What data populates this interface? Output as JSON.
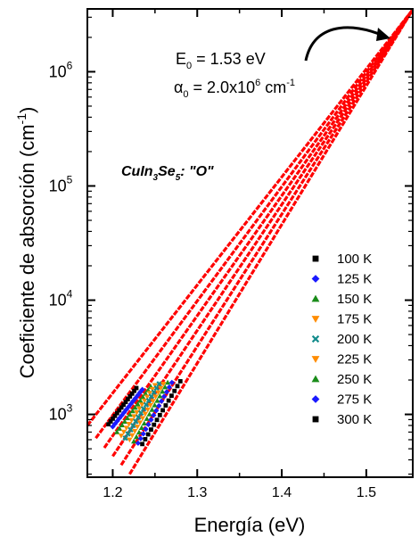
{
  "chart_data": {
    "type": "line",
    "xlabel": "Energía  (eV)",
    "ylabel_main": "Coeficiente de absorción  (cm",
    "ylabel_sup": "-1",
    "ylabel_close": ")",
    "xlim": [
      1.17,
      1.555
    ],
    "ylim_log10": [
      2.45,
      6.55
    ],
    "y_scale": "log",
    "x_ticks": [
      1.2,
      1.3,
      1.4,
      1.5
    ],
    "x_tick_labels": [
      "1.2",
      "1.3",
      "1.4",
      "1.5"
    ],
    "y_ticks": [
      {
        "value": 1000,
        "base": "10",
        "exp": "3"
      },
      {
        "value": 10000,
        "base": "10",
        "exp": "4"
      },
      {
        "value": 100000,
        "base": "10",
        "exp": "5"
      },
      {
        "value": 1000000,
        "base": "10",
        "exp": "6"
      }
    ],
    "fit_color": "#ff0000",
    "fits": [
      {
        "x": [
          1.17,
          1.555
        ],
        "y": [
          800,
          3500000
        ]
      },
      {
        "x": [
          1.18,
          1.555
        ],
        "y": [
          620,
          3500000
        ]
      },
      {
        "x": [
          1.19,
          1.555
        ],
        "y": [
          510,
          3500000
        ]
      },
      {
        "x": [
          1.2,
          1.555
        ],
        "y": [
          430,
          3500000
        ]
      },
      {
        "x": [
          1.21,
          1.555
        ],
        "y": [
          360,
          3500000
        ]
      },
      {
        "x": [
          1.22,
          1.555
        ],
        "y": [
          300,
          3500000
        ]
      }
    ],
    "series": [
      {
        "name": "100 K",
        "color": "#000000",
        "marker": "square",
        "x_range": [
          1.195,
          1.228
        ],
        "y_range": [
          820,
          1700
        ]
      },
      {
        "name": "125 K",
        "color": "#1a1aff",
        "marker": "diamond",
        "x_range": [
          1.2,
          1.235
        ],
        "y_range": [
          780,
          1650
        ]
      },
      {
        "name": "150 K",
        "color": "#1a8c1a",
        "marker": "triangle-up",
        "x_range": [
          1.205,
          1.245
        ],
        "y_range": [
          700,
          1750
        ]
      },
      {
        "name": "175 K",
        "color": "#ff8c00",
        "marker": "triangle-down",
        "x_range": [
          1.21,
          1.25
        ],
        "y_range": [
          650,
          1800
        ]
      },
      {
        "name": "200 K",
        "color": "#138c8c",
        "marker": "x",
        "x_range": [
          1.215,
          1.255
        ],
        "y_range": [
          620,
          1850
        ]
      },
      {
        "name": "225 K",
        "color": "#ff8c00",
        "marker": "triangle-down",
        "x_range": [
          1.22,
          1.26
        ],
        "y_range": [
          600,
          1850
        ]
      },
      {
        "name": "250 K",
        "color": "#1a8c1a",
        "marker": "triangle-up",
        "x_range": [
          1.225,
          1.265
        ],
        "y_range": [
          580,
          1900
        ]
      },
      {
        "name": "275 K",
        "color": "#1a1aff",
        "marker": "diamond",
        "x_range": [
          1.23,
          1.27
        ],
        "y_range": [
          560,
          1900
        ]
      },
      {
        "name": "300 K",
        "color": "#000000",
        "marker": "square",
        "x_range": [
          1.235,
          1.28
        ],
        "y_range": [
          550,
          1950
        ]
      }
    ],
    "annotations": {
      "e0_label": "E",
      "e0_sub": "0",
      "e0_value": " = 1.53 eV",
      "alpha_label": "α",
      "alpha_sub": "0",
      "alpha_value": " = 2.0x10",
      "alpha_exp": "6",
      "alpha_unit": " cm",
      "alpha_unit_exp": "-1",
      "sample_a": "CuIn",
      "sample_sub1": "3",
      "sample_b": "Se",
      "sample_sub2": "5",
      "sample_c": ": \"O\""
    },
    "legend_position": "lower-right",
    "grid": false
  }
}
